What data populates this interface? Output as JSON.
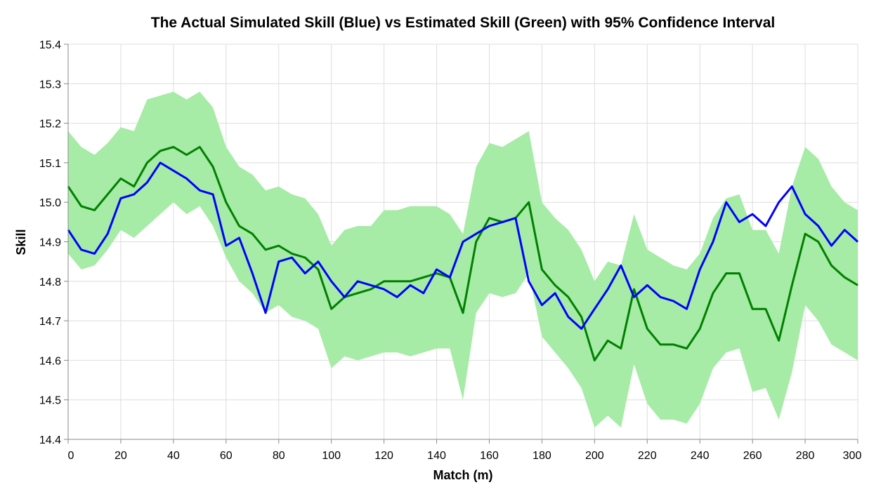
{
  "chart_data": {
    "type": "line",
    "title": "The Actual Simulated Skill (Blue) vs Estimated Skill (Green) with 95% Confidence Interval",
    "xlabel": "Match (m)",
    "ylabel": "Skill",
    "xlim": [
      0,
      300
    ],
    "ylim": [
      14.4,
      15.4
    ],
    "x_ticks": [
      "0",
      "20",
      "40",
      "60",
      "80",
      "100",
      "120",
      "140",
      "160",
      "180",
      "200",
      "220",
      "240",
      "260",
      "280",
      "300"
    ],
    "y_ticks": [
      "14.4",
      "14.5",
      "14.6",
      "14.7",
      "14.8",
      "14.9",
      "15.0",
      "15.1",
      "15.2",
      "15.3",
      "15.4"
    ],
    "grid": true,
    "colors": {
      "actual": "#0000ff",
      "estimate": "#008000",
      "ci_band": "#a6eba6"
    },
    "series": [
      {
        "role": "actual",
        "x": [
          0,
          5,
          10,
          15,
          20,
          25,
          30,
          35,
          40,
          45,
          50,
          55,
          60,
          65,
          70,
          75,
          80,
          85,
          90,
          95,
          100,
          105,
          110,
          115,
          120,
          125,
          130,
          135,
          140,
          145,
          150,
          155,
          160,
          165,
          170,
          175,
          180,
          185,
          190,
          195,
          200,
          205,
          210,
          215,
          220,
          225,
          230,
          235,
          240,
          245,
          250,
          255,
          260,
          265,
          270,
          275,
          280,
          285,
          290,
          295,
          300
        ],
        "y": [
          14.93,
          14.88,
          14.87,
          14.92,
          15.01,
          15.02,
          15.05,
          15.1,
          15.08,
          15.06,
          15.03,
          15.02,
          14.89,
          14.91,
          14.82,
          14.72,
          14.85,
          14.86,
          14.82,
          14.85,
          14.8,
          14.76,
          14.8,
          14.79,
          14.78,
          14.76,
          14.79,
          14.77,
          14.83,
          14.81,
          14.9,
          14.92,
          14.94,
          14.95,
          14.96,
          14.8,
          14.74,
          14.77,
          14.71,
          14.68,
          14.73,
          14.78,
          14.84,
          14.76,
          14.79,
          14.76,
          14.75,
          14.73,
          14.83,
          14.9,
          15.0,
          14.95,
          14.97,
          14.94,
          15.0,
          15.04,
          14.97,
          14.94,
          14.89,
          14.93,
          14.9
        ]
      },
      {
        "role": "estimate",
        "x": [
          0,
          5,
          10,
          15,
          20,
          25,
          30,
          35,
          40,
          45,
          50,
          55,
          60,
          65,
          70,
          75,
          80,
          85,
          90,
          95,
          100,
          105,
          110,
          115,
          120,
          125,
          130,
          135,
          140,
          145,
          150,
          155,
          160,
          165,
          170,
          175,
          180,
          185,
          190,
          195,
          200,
          205,
          210,
          215,
          220,
          225,
          230,
          235,
          240,
          245,
          250,
          255,
          260,
          265,
          270,
          275,
          280,
          285,
          290,
          295,
          300
        ],
        "y": [
          15.04,
          14.99,
          14.98,
          15.02,
          15.06,
          15.04,
          15.1,
          15.13,
          15.14,
          15.12,
          15.14,
          15.09,
          15.0,
          14.94,
          14.92,
          14.88,
          14.89,
          14.87,
          14.86,
          14.83,
          14.73,
          14.76,
          14.77,
          14.78,
          14.8,
          14.8,
          14.8,
          14.81,
          14.82,
          14.81,
          14.72,
          14.9,
          14.96,
          14.95,
          14.96,
          15.0,
          14.83,
          14.79,
          14.76,
          14.71,
          14.6,
          14.65,
          14.63,
          14.78,
          14.68,
          14.64,
          14.64,
          14.63,
          14.68,
          14.77,
          14.82,
          14.82,
          14.73,
          14.73,
          14.65,
          14.79,
          14.92,
          14.9,
          14.84,
          14.81,
          14.79
        ]
      },
      {
        "role": "ci_upper",
        "x": [
          0,
          5,
          10,
          15,
          20,
          25,
          30,
          35,
          40,
          45,
          50,
          55,
          60,
          65,
          70,
          75,
          80,
          85,
          90,
          95,
          100,
          105,
          110,
          115,
          120,
          125,
          130,
          135,
          140,
          145,
          150,
          155,
          160,
          165,
          170,
          175,
          180,
          185,
          190,
          195,
          200,
          205,
          210,
          215,
          220,
          225,
          230,
          235,
          240,
          245,
          250,
          255,
          260,
          265,
          270,
          275,
          280,
          285,
          290,
          295,
          300
        ],
        "y": [
          15.18,
          15.14,
          15.12,
          15.15,
          15.19,
          15.18,
          15.26,
          15.27,
          15.28,
          15.26,
          15.28,
          15.24,
          15.14,
          15.09,
          15.07,
          15.03,
          15.04,
          15.02,
          15.01,
          14.97,
          14.89,
          14.93,
          14.94,
          14.94,
          14.98,
          14.98,
          14.99,
          14.99,
          14.99,
          14.97,
          14.92,
          15.09,
          15.15,
          15.14,
          15.16,
          15.18,
          15.0,
          14.96,
          14.93,
          14.88,
          14.8,
          14.85,
          14.84,
          14.97,
          14.88,
          14.86,
          14.84,
          14.83,
          14.87,
          14.96,
          15.01,
          15.02,
          14.93,
          14.93,
          14.87,
          15.04,
          15.14,
          15.11,
          15.04,
          15.0,
          14.98
        ]
      },
      {
        "role": "ci_lower",
        "x": [
          0,
          5,
          10,
          15,
          20,
          25,
          30,
          35,
          40,
          45,
          50,
          55,
          60,
          65,
          70,
          75,
          80,
          85,
          90,
          95,
          100,
          105,
          110,
          115,
          120,
          125,
          130,
          135,
          140,
          145,
          150,
          155,
          160,
          165,
          170,
          175,
          180,
          185,
          190,
          195,
          200,
          205,
          210,
          215,
          220,
          225,
          230,
          235,
          240,
          245,
          250,
          255,
          260,
          265,
          270,
          275,
          280,
          285,
          290,
          295,
          300
        ],
        "y": [
          14.87,
          14.83,
          14.84,
          14.88,
          14.93,
          14.91,
          14.94,
          14.97,
          15.0,
          14.97,
          14.99,
          14.94,
          14.86,
          14.8,
          14.77,
          14.72,
          14.74,
          14.71,
          14.7,
          14.68,
          14.58,
          14.61,
          14.6,
          14.61,
          14.62,
          14.62,
          14.61,
          14.62,
          14.63,
          14.63,
          14.5,
          14.72,
          14.77,
          14.76,
          14.77,
          14.82,
          14.66,
          14.62,
          14.58,
          14.53,
          14.43,
          14.46,
          14.43,
          14.59,
          14.49,
          14.45,
          14.45,
          14.44,
          14.49,
          14.58,
          14.62,
          14.63,
          14.52,
          14.53,
          14.45,
          14.57,
          14.74,
          14.7,
          14.64,
          14.62,
          14.6
        ]
      }
    ]
  }
}
